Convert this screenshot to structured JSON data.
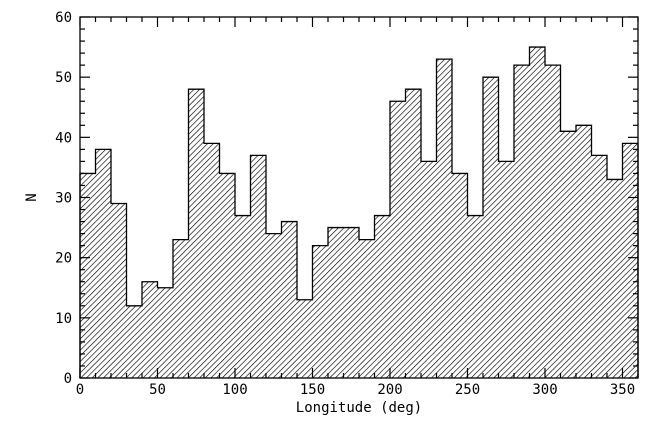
{
  "chart_data": {
    "type": "bar",
    "title": "",
    "xlabel": "Longitude (deg)",
    "ylabel": "N",
    "xlim": [
      0,
      360
    ],
    "ylim": [
      0,
      60
    ],
    "bin_width": 10,
    "x_ticks": [
      0,
      50,
      100,
      150,
      200,
      250,
      300,
      350
    ],
    "y_ticks": [
      0,
      10,
      20,
      30,
      40,
      50,
      60
    ],
    "grid": false,
    "fill_style": "diagonal-hatch",
    "fill_color": "#000000",
    "bins": [
      {
        "start": 0,
        "end": 10,
        "value": 34
      },
      {
        "start": 10,
        "end": 20,
        "value": 38
      },
      {
        "start": 20,
        "end": 30,
        "value": 29
      },
      {
        "start": 30,
        "end": 40,
        "value": 12
      },
      {
        "start": 40,
        "end": 50,
        "value": 16
      },
      {
        "start": 50,
        "end": 60,
        "value": 15
      },
      {
        "start": 60,
        "end": 70,
        "value": 23
      },
      {
        "start": 70,
        "end": 80,
        "value": 48
      },
      {
        "start": 80,
        "end": 90,
        "value": 39
      },
      {
        "start": 90,
        "end": 100,
        "value": 34
      },
      {
        "start": 100,
        "end": 110,
        "value": 27
      },
      {
        "start": 110,
        "end": 120,
        "value": 37
      },
      {
        "start": 120,
        "end": 130,
        "value": 24
      },
      {
        "start": 130,
        "end": 140,
        "value": 26
      },
      {
        "start": 140,
        "end": 150,
        "value": 13
      },
      {
        "start": 150,
        "end": 160,
        "value": 22
      },
      {
        "start": 160,
        "end": 170,
        "value": 25
      },
      {
        "start": 170,
        "end": 180,
        "value": 25
      },
      {
        "start": 180,
        "end": 190,
        "value": 23
      },
      {
        "start": 190,
        "end": 200,
        "value": 27
      },
      {
        "start": 200,
        "end": 210,
        "value": 46
      },
      {
        "start": 210,
        "end": 220,
        "value": 48
      },
      {
        "start": 220,
        "end": 230,
        "value": 36
      },
      {
        "start": 230,
        "end": 240,
        "value": 53
      },
      {
        "start": 240,
        "end": 250,
        "value": 34
      },
      {
        "start": 250,
        "end": 260,
        "value": 27
      },
      {
        "start": 260,
        "end": 270,
        "value": 50
      },
      {
        "start": 270,
        "end": 280,
        "value": 36
      },
      {
        "start": 280,
        "end": 290,
        "value": 52
      },
      {
        "start": 290,
        "end": 300,
        "value": 55
      },
      {
        "start": 300,
        "end": 310,
        "value": 52
      },
      {
        "start": 310,
        "end": 320,
        "value": 41
      },
      {
        "start": 320,
        "end": 330,
        "value": 42
      },
      {
        "start": 330,
        "end": 340,
        "value": 37
      },
      {
        "start": 340,
        "end": 350,
        "value": 33
      },
      {
        "start": 350,
        "end": 360,
        "value": 39
      }
    ]
  }
}
